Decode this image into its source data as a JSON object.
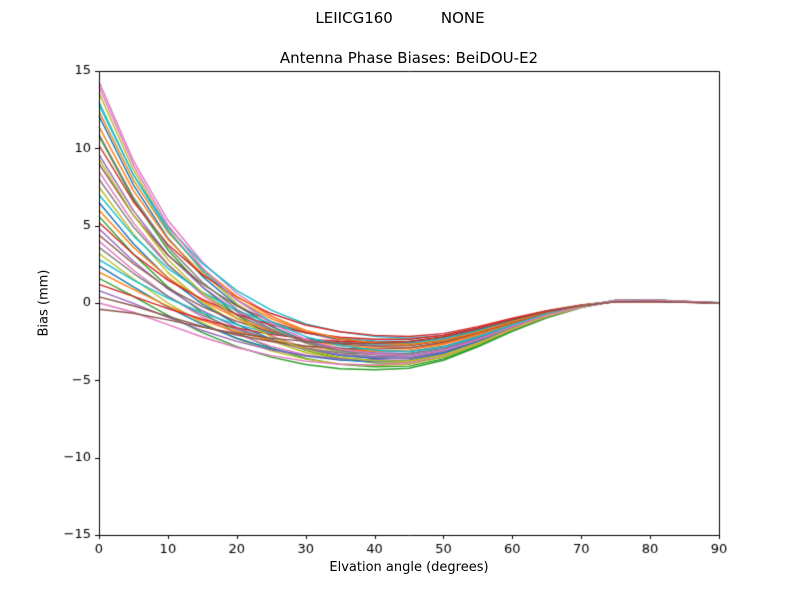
{
  "chart_data": {
    "type": "line",
    "suptitle_left": "LEIICG160",
    "suptitle_right": "NONE",
    "title": "Antenna Phase Biases: BeiDOU-E2",
    "xlabel": "Elvation angle (degrees)",
    "ylabel": "Bias (mm)",
    "xlim": [
      0,
      90
    ],
    "ylim": [
      -15,
      15
    ],
    "xticks": [
      0,
      10,
      20,
      30,
      40,
      50,
      60,
      70,
      80,
      90
    ],
    "yticks": [
      -15,
      -10,
      -5,
      0,
      5,
      10,
      15
    ],
    "grid": false,
    "legend_position": "none",
    "x": [
      0,
      5,
      10,
      15,
      20,
      25,
      30,
      35,
      40,
      45,
      50,
      55,
      60,
      65,
      70,
      75,
      80,
      85,
      90
    ],
    "series": [
      {
        "name": "s1",
        "color": "#e377c2",
        "y": [
          14.3,
          9.19,
          5.35,
          2.65,
          0.63,
          -0.83,
          -1.86,
          -2.47,
          -2.78,
          -2.91,
          -2.65,
          -2.05,
          -1.31,
          -0.66,
          -0.18,
          0.16,
          0.18,
          0.09,
          0.02
        ]
      },
      {
        "name": "s2",
        "color": "#bcbd22",
        "y": [
          13.6,
          8.62,
          4.79,
          2.04,
          -0.03,
          -1.53,
          -2.59,
          -3.21,
          -3.52,
          -3.61,
          -3.26,
          -2.51,
          -1.61,
          -0.82,
          -0.22,
          0.18,
          0.2,
          0.1,
          0.02
        ]
      },
      {
        "name": "s3",
        "color": "#17becf",
        "y": [
          12.8,
          8.28,
          4.91,
          2.56,
          0.8,
          -0.46,
          -1.35,
          -1.87,
          -2.16,
          -2.28,
          -2.09,
          -1.62,
          -1.04,
          -0.52,
          -0.14,
          0.12,
          0.14,
          0.08,
          0.02
        ]
      },
      {
        "name": "s4",
        "color": "#1f77b4",
        "y": [
          12.1,
          7.64,
          4.2,
          1.72,
          -0.15,
          -1.5,
          -2.46,
          -3.01,
          -3.29,
          -3.37,
          -3.04,
          -2.35,
          -1.51,
          -0.77,
          -0.21,
          0.16,
          0.19,
          0.1,
          0.01
        ]
      },
      {
        "name": "s5",
        "color": "#ff7f0e",
        "y": [
          11.4,
          7.27,
          4.12,
          1.89,
          0.21,
          -1.01,
          -1.87,
          -2.37,
          -2.63,
          -2.71,
          -2.46,
          -1.9,
          -1.21,
          -0.61,
          -0.16,
          0.14,
          0.16,
          0.08,
          0.01
        ]
      },
      {
        "name": "s6",
        "color": "#2ca02c",
        "y": [
          10.8,
          6.68,
          3.43,
          1.04,
          -0.79,
          -2.12,
          -3.06,
          -3.6,
          -3.86,
          -3.9,
          -3.49,
          -2.69,
          -1.73,
          -0.89,
          -0.26,
          0.17,
          0.21,
          0.11,
          0.01
        ]
      },
      {
        "name": "s7",
        "color": "#d62728",
        "y": [
          10.2,
          6.55,
          3.78,
          1.83,
          0.37,
          -0.68,
          -1.42,
          -1.86,
          -2.09,
          -2.17,
          -1.98,
          -1.53,
          -0.98,
          -0.49,
          -0.13,
          0.12,
          0.13,
          0.07,
          0.01
        ]
      },
      {
        "name": "s8",
        "color": "#9467bd",
        "y": [
          9.6,
          5.97,
          3.12,
          1.03,
          -0.55,
          -1.71,
          -2.52,
          -2.99,
          -3.22,
          -3.26,
          -2.93,
          -2.26,
          -1.44,
          -0.74,
          -0.21,
          0.14,
          0.17,
          0.09,
          0.01
        ]
      },
      {
        "name": "s9",
        "color": "#8c564b",
        "y": [
          9.0,
          5.67,
          3.09,
          1.23,
          -0.18,
          -1.2,
          -1.92,
          -2.34,
          -2.55,
          -2.6,
          -2.34,
          -1.81,
          -1.16,
          -0.59,
          -0.16,
          0.12,
          0.14,
          0.08,
          0.01
        ]
      },
      {
        "name": "s10",
        "color": "#e377c2",
        "y": [
          8.5,
          5.18,
          2.51,
          0.52,
          -1.01,
          -2.12,
          -2.91,
          -3.36,
          -3.57,
          -3.59,
          -3.2,
          -2.46,
          -1.59,
          -0.82,
          -0.24,
          0.15,
          0.18,
          0.09,
          0.01
        ]
      },
      {
        "name": "s11",
        "color": "#7f7f7f",
        "y": [
          8.0,
          4.91,
          2.45,
          0.63,
          -0.76,
          -1.78,
          -2.49,
          -2.91,
          -3.1,
          -3.13,
          -2.8,
          -2.15,
          -1.38,
          -0.71,
          -0.21,
          0.14,
          0.16,
          0.08,
          0.01
        ]
      },
      {
        "name": "s12",
        "color": "#bcbd22",
        "y": [
          7.5,
          4.47,
          1.98,
          0.09,
          -1.37,
          -2.44,
          -3.2,
          -3.63,
          -3.82,
          -3.81,
          -3.4,
          -2.61,
          -1.68,
          -0.86,
          -0.25,
          0.16,
          0.19,
          0.09,
          0.01
        ]
      },
      {
        "name": "s13",
        "color": "#17becf",
        "y": [
          7.0,
          4.34,
          2.24,
          0.7,
          -0.48,
          -1.33,
          -1.93,
          -2.28,
          -2.45,
          -2.48,
          -2.22,
          -1.71,
          -1.1,
          -0.57,
          -0.16,
          0.1,
          0.13,
          0.06,
          0.01
        ]
      },
      {
        "name": "s14",
        "color": "#1f77b4",
        "y": [
          6.5,
          3.83,
          1.62,
          -0.07,
          -1.38,
          -2.34,
          -3.02,
          -3.4,
          -3.57,
          -3.56,
          -3.17,
          -2.44,
          -1.57,
          -0.81,
          -0.24,
          0.14,
          0.18,
          0.09,
          0.01
        ]
      },
      {
        "name": "s15",
        "color": "#ff7f0e",
        "y": [
          6.0,
          3.6,
          1.64,
          0.16,
          -0.98,
          -1.82,
          -2.41,
          -2.75,
          -2.9,
          -2.9,
          -2.58,
          -1.98,
          -1.27,
          -0.65,
          -0.19,
          0.12,
          0.15,
          0.07,
          0.01
        ]
      },
      {
        "name": "s16",
        "color": "#2ca02c",
        "y": [
          5.6,
          3.15,
          1.04,
          -0.63,
          -1.94,
          -2.9,
          -3.58,
          -3.97,
          -4.12,
          -4.08,
          -3.61,
          -2.77,
          -1.79,
          -0.93,
          -0.28,
          0.15,
          0.19,
          0.1,
          0.01
        ]
      },
      {
        "name": "s17",
        "color": "#d62728",
        "y": [
          5.2,
          3.15,
          1.48,
          0.23,
          -0.73,
          -1.43,
          -1.92,
          -2.21,
          -2.34,
          -2.34,
          -2.09,
          -1.61,
          -1.03,
          -0.53,
          -0.15,
          0.1,
          0.11,
          0.06,
          0.01
        ]
      },
      {
        "name": "s18",
        "color": "#9467bd",
        "y": [
          4.8,
          2.7,
          0.91,
          -0.5,
          -1.6,
          -2.43,
          -3.0,
          -3.32,
          -3.46,
          -3.43,
          -3.04,
          -2.33,
          -1.5,
          -0.77,
          -0.24,
          0.13,
          0.16,
          0.08,
          0.01
        ]
      },
      {
        "name": "s19",
        "color": "#8c564b",
        "y": [
          4.4,
          2.54,
          0.97,
          -0.24,
          -1.19,
          -1.89,
          -2.38,
          -2.66,
          -2.78,
          -2.76,
          -2.45,
          -1.88,
          -1.21,
          -0.63,
          -0.19,
          0.11,
          0.13,
          0.07,
          0.01
        ]
      },
      {
        "name": "s20",
        "color": "#e377c2",
        "y": [
          4.0,
          2.12,
          0.44,
          -0.92,
          -2.0,
          -2.8,
          -3.36,
          -3.68,
          -3.8,
          -3.74,
          -3.31,
          -2.54,
          -1.64,
          -0.85,
          -0.26,
          0.13,
          0.17,
          0.09,
          0.0
        ]
      },
      {
        "name": "s21",
        "color": "#7f7f7f",
        "y": [
          3.6,
          1.92,
          0.43,
          -0.78,
          -1.73,
          -2.44,
          -2.93,
          -3.22,
          -3.32,
          -3.28,
          -2.9,
          -2.22,
          -1.43,
          -0.74,
          -0.23,
          0.12,
          0.15,
          0.08,
          0.0
        ]
      },
      {
        "name": "s22",
        "color": "#bcbd22",
        "y": [
          3.2,
          1.55,
          0.0,
          -1.29,
          -2.32,
          -3.09,
          -3.63,
          -3.94,
          -4.04,
          -3.96,
          -3.5,
          -2.68,
          -1.72,
          -0.9,
          -0.27,
          0.14,
          0.18,
          0.09,
          0.0
        ]
      },
      {
        "name": "s23",
        "color": "#17becf",
        "y": [
          2.8,
          1.48,
          0.31,
          -0.64,
          -1.4,
          -1.96,
          -2.35,
          -2.57,
          -2.66,
          -2.62,
          -2.32,
          -1.78,
          -1.15,
          -0.6,
          -0.19,
          0.09,
          0.12,
          0.06,
          0.0
        ]
      },
      {
        "name": "s24",
        "color": "#1f77b4",
        "y": [
          2.4,
          1.04,
          -0.27,
          -1.38,
          -2.28,
          -2.96,
          -3.43,
          -3.69,
          -3.78,
          -3.7,
          -3.26,
          -2.5,
          -1.61,
          -0.84,
          -0.26,
          0.13,
          0.17,
          0.08,
          0.0
        ]
      },
      {
        "name": "s25",
        "color": "#ff7f0e",
        "y": [
          2.0,
          0.88,
          -0.2,
          -1.12,
          -1.86,
          -2.42,
          -2.81,
          -3.03,
          -3.1,
          -3.03,
          -2.67,
          -2.05,
          -1.32,
          -0.68,
          -0.21,
          0.11,
          0.14,
          0.06,
          0.0
        ]
      },
      {
        "name": "s26",
        "color": "#2ca02c",
        "y": [
          1.6,
          0.43,
          -0.8,
          -1.91,
          -2.82,
          -3.5,
          -3.98,
          -4.25,
          -4.32,
          -4.22,
          -3.7,
          -2.83,
          -1.83,
          -0.96,
          -0.3,
          0.14,
          0.18,
          0.09,
          0.0
        ]
      },
      {
        "name": "s27",
        "color": "#d62728",
        "y": [
          1.2,
          0.43,
          -0.36,
          -1.05,
          -1.61,
          -2.03,
          -2.32,
          -2.49,
          -2.54,
          -2.48,
          -2.18,
          -1.67,
          -1.08,
          -0.56,
          -0.17,
          0.08,
          0.1,
          0.05,
          0.0
        ]
      },
      {
        "name": "s28",
        "color": "#9467bd",
        "y": [
          0.8,
          -0.02,
          -0.93,
          -1.78,
          -2.48,
          -3.03,
          -3.4,
          -3.6,
          -3.66,
          -3.56,
          -3.13,
          -2.4,
          -1.54,
          -0.8,
          -0.26,
          0.11,
          0.15,
          0.07,
          0.0
        ]
      },
      {
        "name": "s29",
        "color": "#8c564b",
        "y": [
          0.4,
          -0.18,
          -0.87,
          -1.52,
          -2.07,
          -2.49,
          -2.78,
          -2.94,
          -2.98,
          -2.9,
          -2.54,
          -1.94,
          -1.26,
          -0.66,
          -0.21,
          0.09,
          0.12,
          0.06,
          0.0
        ]
      },
      {
        "name": "s30",
        "color": "#e377c2",
        "y": [
          0.0,
          -0.6,
          -1.4,
          -2.2,
          -2.88,
          -3.4,
          -3.76,
          -3.96,
          -4.0,
          -3.88,
          -3.4,
          -2.6,
          -1.68,
          -0.88,
          -0.28,
          0.12,
          0.16,
          0.08,
          0.0
        ]
      },
      {
        "name": "s31",
        "color": "#7f7f7f",
        "y": [
          10.9,
          6.82,
          3.64,
          1.34,
          -0.41,
          -1.68,
          -2.58,
          -3.1,
          -3.35,
          -3.41,
          -3.07,
          -2.37,
          -1.52,
          -0.78,
          -0.22,
          0.16,
          0.19,
          0.1,
          0.01
        ]
      },
      {
        "name": "s32",
        "color": "#bcbd22",
        "y": [
          9.3,
          5.69,
          2.81,
          0.67,
          -0.97,
          -2.17,
          -3.02,
          -3.51,
          -3.73,
          -3.75,
          -3.36,
          -2.58,
          -1.66,
          -0.85,
          -0.24,
          0.16,
          0.19,
          0.1,
          0.01
        ]
      },
      {
        "name": "s33",
        "color": "#ff7f0e",
        "y": [
          12.4,
          7.95,
          4.58,
          2.21,
          0.43,
          -0.86,
          -1.77,
          -2.3,
          -2.58,
          -2.68,
          -2.43,
          -1.88,
          -1.2,
          -0.61,
          -0.16,
          0.14,
          0.16,
          0.08,
          0.01
        ]
      },
      {
        "name": "s34",
        "color": "#17becf",
        "y": [
          13.0,
          8.28,
          4.68,
          2.12,
          0.2,
          -1.2,
          -2.18,
          -2.75,
          -3.05,
          -3.15,
          -2.85,
          -2.2,
          -1.41,
          -0.71,
          -0.19,
          0.16,
          0.18,
          0.09,
          0.02
        ]
      },
      {
        "name": "s35",
        "color": "#e377c2",
        "y": [
          14.0,
          8.92,
          5.04,
          2.28,
          0.2,
          -1.3,
          -2.36,
          -2.98,
          -3.3,
          -3.4,
          -3.08,
          -2.38,
          -1.53,
          -0.77,
          -0.21,
          0.17,
          0.2,
          0.1,
          0.02
        ]
      },
      {
        "name": "s36",
        "color": "#8c564b",
        "y": [
          -0.4,
          -0.66,
          -1.09,
          -1.56,
          -1.96,
          -2.27,
          -2.48,
          -2.6,
          -2.62,
          -2.53,
          -2.22,
          -1.7,
          -1.09,
          -0.57,
          -0.18,
          0.08,
          0.1,
          0.05,
          0.0
        ]
      }
    ]
  }
}
